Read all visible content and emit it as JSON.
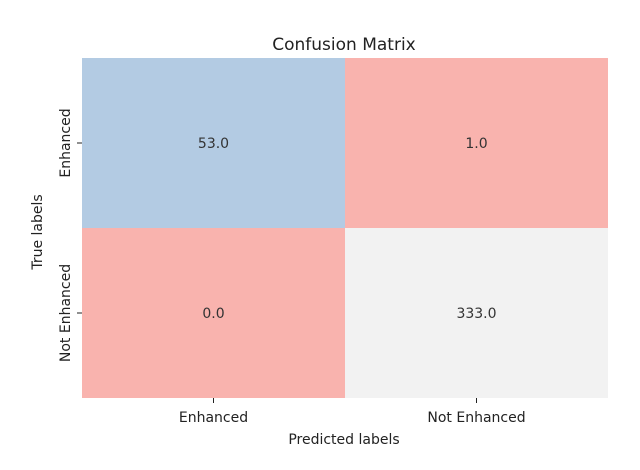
{
  "chart_data": {
    "type": "heatmap",
    "title": "Confusion Matrix",
    "xlabel": "Predicted labels",
    "ylabel": "True labels",
    "x_categories": [
      "Enhanced",
      "Not Enhanced"
    ],
    "y_categories": [
      "Enhanced",
      "Not Enhanced"
    ],
    "values": [
      [
        "53.0",
        "1.0"
      ],
      [
        "0.0",
        "333.0"
      ]
    ],
    "cell_colors": [
      [
        "#b3cbe3",
        "#f9b3ae"
      ],
      [
        "#f9b3ae",
        "#f2f2f2"
      ]
    ],
    "colorbar": false,
    "grid": false
  }
}
